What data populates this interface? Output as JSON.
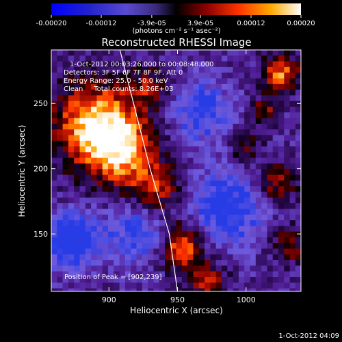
{
  "chart_data": {
    "type": "heatmap",
    "title": "Reconstructed RHESSI Image",
    "xlabel": "Heliocentric X (arcsec)",
    "ylabel": "Heliocentric Y (arcsec)",
    "xlim": [
      858,
      1040
    ],
    "ylim": [
      106,
      291
    ],
    "x_ticks": [
      900,
      950,
      1000
    ],
    "y_ticks": [
      150,
      200,
      250
    ],
    "colorbar": {
      "range": [
        -0.0002,
        0.0002
      ],
      "ticks": [
        {
          "value": -0.0002,
          "label": "-0.00020"
        },
        {
          "value": -0.00012,
          "label": "-0.00012"
        },
        {
          "value": -3.9e-05,
          "label": "-3.9e-05"
        },
        {
          "value": 3.9e-05,
          "label": "3.9e-05"
        },
        {
          "value": 0.00012,
          "label": "0.00012"
        },
        {
          "value": 0.0002,
          "label": "0.00020"
        }
      ],
      "unit_label": "(photons cm⁻² s⁻¹ asec⁻²)"
    },
    "annotations": [
      "1-Oct-2012 00:03:26.000 to 00:08:48.000",
      "Detectors: 3F 5F 6F 7F 8F 9F, Att 0",
      "Energy Range: 25.0 - 50.0 keV",
      "Clean     Total counts: 8.26E+03"
    ],
    "peak_annotation": "Position of Peak = [902,239]",
    "peak_position": [
      902,
      239
    ],
    "limb_curve": [
      [
        908,
        291
      ],
      [
        918,
        250
      ],
      [
        930,
        200
      ],
      [
        944,
        150
      ],
      [
        950,
        106
      ]
    ]
  },
  "footer_timestamp": "1-Oct-2012 04:09"
}
